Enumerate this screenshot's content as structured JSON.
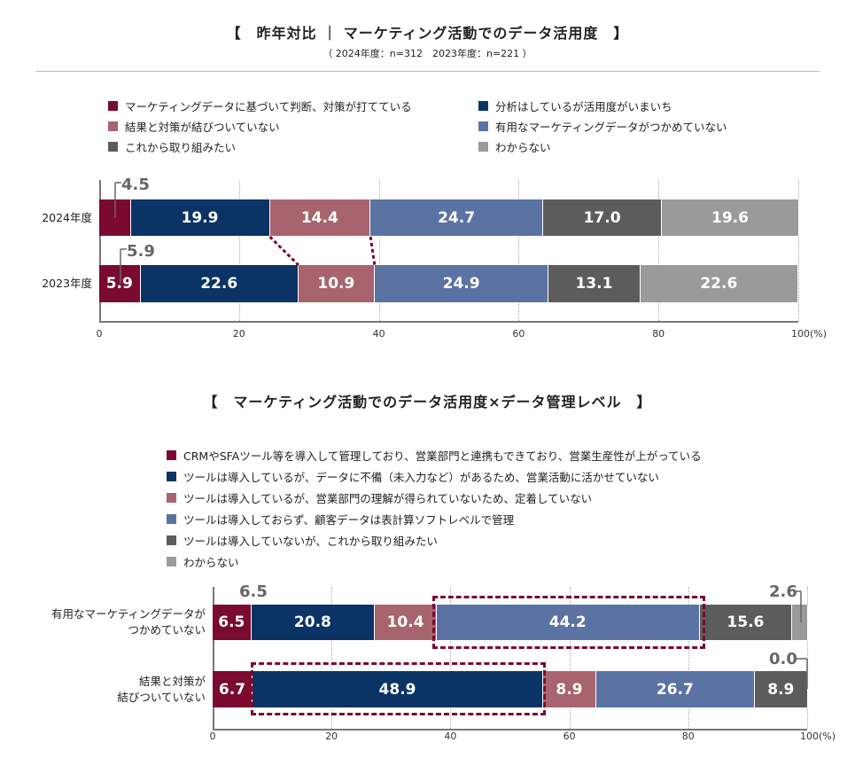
{
  "colors": [
    "#7a0a2f",
    "#0b3366",
    "#a8646e",
    "#5a73a3",
    "#5c5c5c",
    "#9a9a9a"
  ],
  "chart_data": [
    {
      "type": "bar",
      "stacked": true,
      "orientation": "horizontal",
      "title": "【　昨年対比 ｜ マーケティング活動でのデータ活用度　】",
      "subtitle": "（ 2024年度：n=312　2023年度：n=221 ）",
      "legend": [
        "マーケティングデータに基づいて判断、対策が打てている",
        "分析はしているが活用度がいまいち",
        "結果と対策が結びついていない",
        "有用なマーケティングデータがつかめていない",
        "これから取り組みたい",
        "わからない"
      ],
      "categories": [
        "2024年度",
        "2023年度"
      ],
      "series_values": [
        [
          4.5,
          19.9,
          14.4,
          24.7,
          17.0,
          19.6
        ],
        [
          5.9,
          22.6,
          10.9,
          24.9,
          13.1,
          22.6
        ]
      ],
      "callouts": [
        "4.5",
        "5.9"
      ],
      "xticks": [
        "0",
        "20",
        "40",
        "60",
        "80",
        "100(%)"
      ],
      "xlim": [
        0,
        100
      ]
    },
    {
      "type": "bar",
      "stacked": true,
      "orientation": "horizontal",
      "title": "【　マーケティング活動でのデータ活用度×データ管理レベル　】",
      "legend": [
        "CRMやSFAツール等を導入して管理しており、営業部門と連携もできており、営業生産性が上がっている",
        "ツールは導入しているが、データに不備（未入力など）があるため、営業活動に活かせていない",
        "ツールは導入しているが、営業部門の理解が得られていないため、定着していない",
        "ツールは導入しておらず、顧客データは表計算ソフトレベルで管理",
        "ツールは導入していないが、これから取り組みたい",
        "わからない"
      ],
      "categories": [
        "有用なマーケティングデータが\nつかめていない",
        "結果と対策が\n結びついていない"
      ],
      "series_values": [
        [
          6.5,
          20.8,
          10.4,
          44.2,
          15.6,
          2.6
        ],
        [
          6.7,
          48.9,
          8.9,
          26.7,
          8.9,
          0.0
        ]
      ],
      "callouts": [
        "6.5",
        "2.6",
        "0.0"
      ],
      "xticks": [
        "0",
        "20",
        "40",
        "60",
        "80",
        "100(%)"
      ],
      "xlim": [
        0,
        100
      ]
    }
  ]
}
